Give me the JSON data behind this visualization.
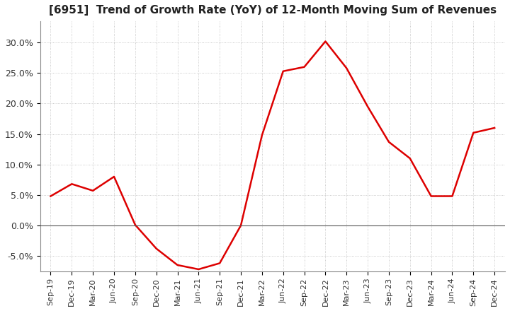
{
  "title": "[6951]  Trend of Growth Rate (YoY) of 12-Month Moving Sum of Revenues",
  "title_fontsize": 11,
  "background_color": "#ffffff",
  "plot_bg_color": "#ffffff",
  "grid_color": "#aaaaaa",
  "line_color": "#dd0000",
  "ylim": [
    -0.075,
    0.335
  ],
  "yticks": [
    -0.05,
    0.0,
    0.05,
    0.1,
    0.15,
    0.2,
    0.25,
    0.3
  ],
  "ytick_labels": [
    "-5.0%",
    "0.0%",
    "5.0%",
    "10.0%",
    "15.0%",
    "20.0%",
    "25.0%",
    "30.0%"
  ],
  "x_labels": [
    "Sep-19",
    "Dec-19",
    "Mar-20",
    "Jun-20",
    "Sep-20",
    "Dec-20",
    "Mar-21",
    "Jun-21",
    "Sep-21",
    "Dec-21",
    "Mar-22",
    "Jun-22",
    "Sep-22",
    "Dec-22",
    "Mar-23",
    "Jun-23",
    "Sep-23",
    "Dec-23",
    "Mar-24",
    "Jun-24",
    "Sep-24",
    "Dec-24"
  ],
  "values": [
    0.048,
    0.068,
    0.057,
    0.08,
    0.001,
    -0.038,
    -0.065,
    -0.072,
    -0.062,
    0.0,
    0.148,
    0.253,
    0.26,
    0.302,
    0.258,
    0.195,
    0.137,
    0.11,
    0.048,
    0.048,
    0.152,
    0.16
  ]
}
